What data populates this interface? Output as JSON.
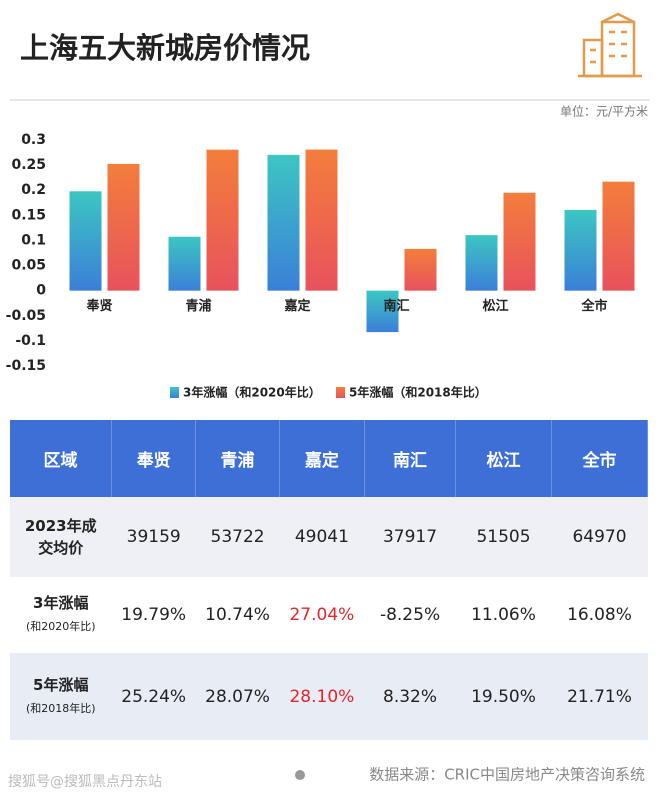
{
  "header": {
    "title": "上海五大新城房价情况",
    "unit": "单位：元/平方米"
  },
  "chart_data": {
    "type": "bar",
    "categories": [
      "奉贤",
      "青浦",
      "嘉定",
      "南汇",
      "松江",
      "全市"
    ],
    "series": [
      {
        "name": "3年涨幅（和2020年比）",
        "color": "#3cc6c2",
        "values": [
          0.1979,
          0.1074,
          0.2704,
          -0.0825,
          0.1106,
          0.1608
        ]
      },
      {
        "name": "5年涨幅（和2018年比）",
        "color": "#f37e3c",
        "values": [
          0.2524,
          0.2807,
          0.281,
          0.0832,
          0.195,
          0.2171
        ]
      }
    ],
    "ylim": [
      -0.15,
      0.3
    ],
    "yticks": [
      0.3,
      0.25,
      0.2,
      0.15,
      0.1,
      0.05,
      0,
      -0.05,
      -0.1,
      -0.15
    ],
    "grid": false,
    "legend": "bottom"
  },
  "table": {
    "header": [
      "区域",
      "奉贤",
      "青浦",
      "嘉定",
      "南汇",
      "松江",
      "全市"
    ],
    "highlight_color": "#e0262b",
    "rows": [
      {
        "label": [
          "2023年成",
          "交均价"
        ],
        "cells": [
          {
            "text": "39159"
          },
          {
            "text": "53722"
          },
          {
            "text": "49041"
          },
          {
            "text": "37917"
          },
          {
            "text": "51505"
          },
          {
            "text": "64970"
          }
        ]
      },
      {
        "label": [
          "3年涨幅",
          "(和2020年比)"
        ],
        "cells": [
          {
            "text": "19.79%"
          },
          {
            "text": "10.74%"
          },
          {
            "text": "27.04%",
            "highlight": true
          },
          {
            "text": "-8.25%"
          },
          {
            "text": "11.06%"
          },
          {
            "text": "16.08%"
          }
        ]
      },
      {
        "label": [
          "5年涨幅",
          "(和2018年比)"
        ],
        "cells": [
          {
            "text": "25.24%"
          },
          {
            "text": "28.07%"
          },
          {
            "text": "28.10%",
            "highlight": true
          },
          {
            "text": "8.32%"
          },
          {
            "text": "19.50%"
          },
          {
            "text": "21.71%"
          }
        ]
      }
    ]
  },
  "footer": {
    "watermark": "搜狐号@搜狐黑点丹东站",
    "source": "数据来源：CRIC中国房地产决策咨询系统"
  }
}
